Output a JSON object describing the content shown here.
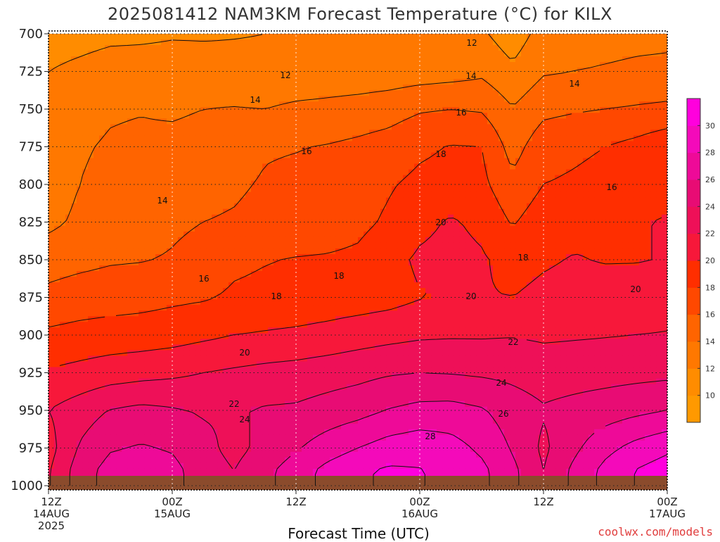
{
  "title": "2025081412 NAM3KM Forecast Temperature (°C) for KILX",
  "watermark": "coolwx.com/models",
  "chart_data": {
    "type": "heatmap",
    "xlabel": "Forecast Time (UTC)",
    "ylabel": "",
    "y_ticks": [
      "700",
      "725",
      "750",
      "775",
      "800",
      "825",
      "850",
      "875",
      "900",
      "925",
      "950",
      "975",
      "1000"
    ],
    "y_range": [
      700,
      1000
    ],
    "x_ticks": [
      {
        "hour": "12Z",
        "date": "14AUG",
        "year": "2025"
      },
      {
        "hour": "00Z",
        "date": "15AUG",
        "year": ""
      },
      {
        "hour": "12Z",
        "date": "",
        "year": ""
      },
      {
        "hour": "00Z",
        "date": "16AUG",
        "year": ""
      },
      {
        "hour": "12Z",
        "date": "",
        "year": ""
      },
      {
        "hour": "00Z",
        "date": "17AUG",
        "year": ""
      }
    ],
    "x_range_hours": [
      0,
      60
    ],
    "grid": true,
    "colorbar": {
      "ticks": [
        "10",
        "12",
        "14",
        "16",
        "18",
        "20",
        "22",
        "24",
        "26",
        "28",
        "30"
      ],
      "levels": [
        8,
        10,
        12,
        14,
        16,
        18,
        20,
        22,
        24,
        26,
        28,
        30,
        32
      ],
      "colors": [
        "#ff9900",
        "#ff8c00",
        "#ff7800",
        "#ff6400",
        "#ff4800",
        "#ff2e00",
        "#f7183a",
        "#ee1058",
        "#e80c74",
        "#ee0a98",
        "#f40aba",
        "#ff00dd"
      ]
    },
    "contour_labels": [
      "12",
      "12",
      "14",
      "14",
      "14",
      "14",
      "16",
      "16",
      "16",
      "16",
      "18",
      "18",
      "18",
      "18",
      "20",
      "20",
      "20",
      "20",
      "22",
      "22",
      "24",
      "24",
      "26",
      "28"
    ],
    "time_hours": [
      0,
      3,
      6,
      9,
      12,
      15,
      18,
      21,
      24,
      27,
      30,
      33,
      36,
      39,
      42,
      45,
      48,
      51,
      54,
      57,
      60
    ],
    "levels_hpa": [
      700,
      725,
      750,
      775,
      800,
      825,
      850,
      875,
      900,
      925,
      950,
      975,
      990
    ],
    "temperature_c": [
      [
        11.0,
        11.2,
        11.5,
        11.6,
        11.8,
        11.8,
        11.9,
        12.0,
        12.0,
        12.1,
        12.2,
        12.3,
        12.2,
        12.5,
        12.3,
        10.9,
        12.8,
        13.0,
        13.2,
        13.4,
        13.5
      ],
      [
        12.0,
        12.5,
        13.0,
        13.0,
        13.0,
        12.8,
        12.6,
        12.5,
        12.5,
        12.6,
        12.6,
        12.8,
        13.0,
        13.2,
        13.6,
        12.4,
        13.8,
        14.0,
        14.2,
        14.4,
        14.5
      ],
      [
        12.5,
        13.4,
        13.8,
        13.9,
        13.7,
        14.0,
        14.1,
        14.0,
        14.4,
        14.6,
        14.9,
        15.2,
        15.8,
        16.0,
        15.8,
        14.1,
        15.5,
        15.8,
        16.0,
        16.2,
        16.4
      ],
      [
        12.8,
        13.8,
        14.2,
        14.4,
        14.6,
        14.8,
        15.1,
        15.8,
        15.9,
        16.1,
        16.4,
        16.8,
        17.6,
        18.1,
        18.0,
        15.2,
        17.2,
        17.6,
        18.0,
        18.6,
        19.5
      ],
      [
        12.9,
        14.0,
        14.5,
        14.6,
        15.0,
        15.4,
        15.7,
        16.2,
        16.5,
        16.8,
        17.2,
        17.8,
        18.5,
        18.8,
        18.5,
        16.5,
        18.0,
        18.3,
        18.7,
        19.2,
        19.6
      ],
      [
        13.5,
        14.4,
        14.6,
        14.9,
        15.6,
        16.0,
        16.2,
        16.6,
        16.8,
        17.0,
        17.5,
        18.3,
        19.5,
        20.2,
        19.6,
        17.8,
        19.2,
        19.5,
        19.7,
        19.9,
        20.1
      ],
      [
        15.2,
        15.5,
        15.8,
        15.9,
        16.2,
        16.8,
        17.6,
        17.9,
        18.1,
        18.2,
        18.4,
        19.4,
        20.3,
        20.6,
        20.2,
        19.4,
        19.8,
        20.1,
        19.9,
        19.9,
        20.1
      ],
      [
        16.5,
        16.9,
        17.1,
        17.3,
        17.6,
        17.8,
        18.3,
        18.5,
        18.6,
        18.8,
        19.0,
        19.3,
        19.9,
        20.2,
        20.1,
        20.0,
        20.4,
        20.6,
        20.8,
        21.0,
        21.2
      ],
      [
        18.4,
        18.7,
        18.9,
        19.0,
        19.2,
        19.6,
        20.0,
        20.2,
        20.4,
        20.7,
        21.1,
        21.4,
        21.7,
        21.8,
        21.8,
        21.9,
        21.7,
        21.8,
        21.9,
        22.0,
        22.1
      ],
      [
        20.2,
        20.6,
        21.0,
        21.3,
        21.6,
        22.0,
        22.3,
        22.6,
        22.8,
        23.1,
        23.4,
        23.8,
        24.0,
        23.9,
        23.7,
        23.5,
        23.1,
        23.2,
        23.3,
        23.4,
        23.5
      ],
      [
        22.0,
        23.0,
        24.1,
        24.5,
        24.2,
        23.8,
        23.8,
        24.2,
        24.3,
        24.8,
        25.3,
        26.1,
        26.6,
        26.7,
        26.2,
        25.0,
        24.2,
        24.6,
        25.0,
        25.5,
        26.0
      ],
      [
        21.2,
        24.2,
        25.8,
        26.2,
        25.8,
        24.6,
        23.4,
        24.6,
        25.8,
        27.0,
        28.0,
        28.9,
        29.3,
        28.8,
        27.6,
        25.8,
        23.6,
        25.6,
        27.4,
        28.7,
        29.6
      ],
      [
        21.8,
        25.0,
        26.8,
        27.2,
        26.6,
        25.0,
        24.0,
        25.5,
        27.0,
        28.6,
        29.7,
        30.3,
        30.1,
        29.5,
        28.5,
        26.5,
        24.0,
        26.5,
        28.6,
        30.1,
        31.0
      ]
    ]
  }
}
